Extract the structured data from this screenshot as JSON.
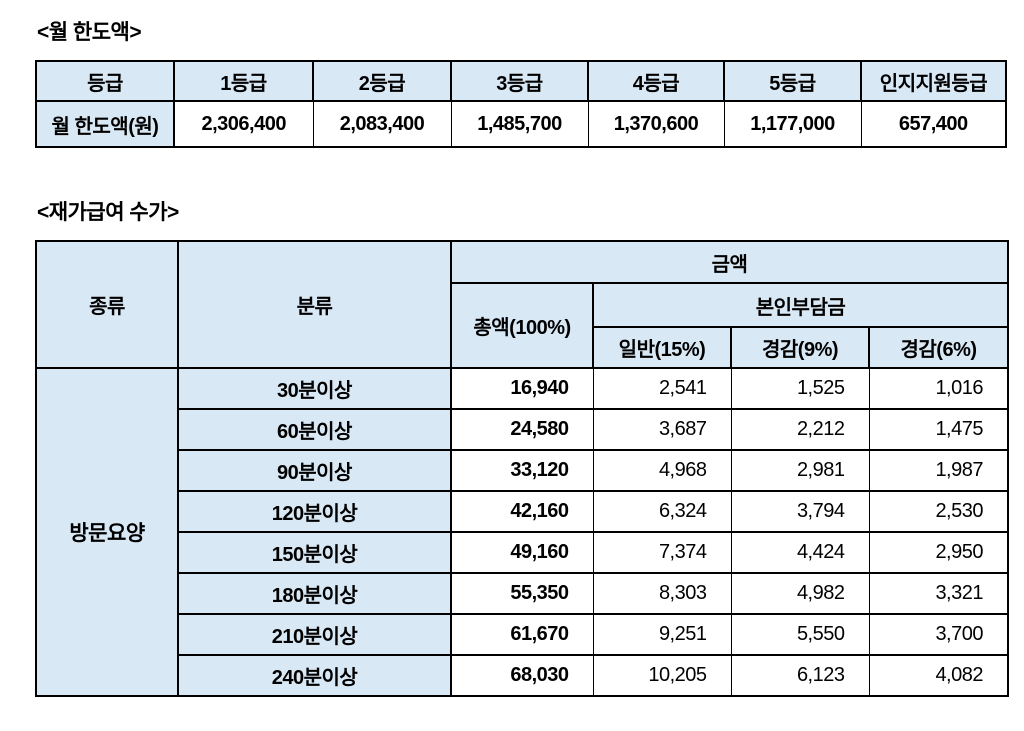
{
  "colors": {
    "header_fill": "#d9e8f5",
    "border": "#000000",
    "text": "#000000",
    "page_background": "#ffffff"
  },
  "section1": {
    "title": "<월 한도액>",
    "table": {
      "header": [
        "등급",
        "1등급",
        "2등급",
        "3등급",
        "4등급",
        "5등급",
        "인지지원등급"
      ],
      "row_label": "월 한도액(원)",
      "values": [
        "2,306,400",
        "2,083,400",
        "1,485,700",
        "1,370,600",
        "1,177,000",
        "657,400"
      ]
    }
  },
  "section2": {
    "title": "<재가급여 수가>",
    "table": {
      "col_type": "종류",
      "col_class": "분류",
      "col_amount": "금액",
      "col_total": "총액(100%)",
      "col_copay": "본인부담금",
      "copay_cols": [
        "일반(15%)",
        "경감(9%)",
        "경감(6%)"
      ],
      "row_group": "방문요양",
      "rows": [
        {
          "class": "30분이상",
          "total": "16,940",
          "copay": [
            "2,541",
            "1,525",
            "1,016"
          ]
        },
        {
          "class": "60분이상",
          "total": "24,580",
          "copay": [
            "3,687",
            "2,212",
            "1,475"
          ]
        },
        {
          "class": "90분이상",
          "total": "33,120",
          "copay": [
            "4,968",
            "2,981",
            "1,987"
          ]
        },
        {
          "class": "120분이상",
          "total": "42,160",
          "copay": [
            "6,324",
            "3,794",
            "2,530"
          ]
        },
        {
          "class": "150분이상",
          "total": "49,160",
          "copay": [
            "7,374",
            "4,424",
            "2,950"
          ]
        },
        {
          "class": "180분이상",
          "total": "55,350",
          "copay": [
            "8,303",
            "4,982",
            "3,321"
          ]
        },
        {
          "class": "210분이상",
          "total": "61,670",
          "copay": [
            "9,251",
            "5,550",
            "3,700"
          ]
        },
        {
          "class": "240분이상",
          "total": "68,030",
          "copay": [
            "10,205",
            "6,123",
            "4,082"
          ]
        }
      ]
    }
  }
}
